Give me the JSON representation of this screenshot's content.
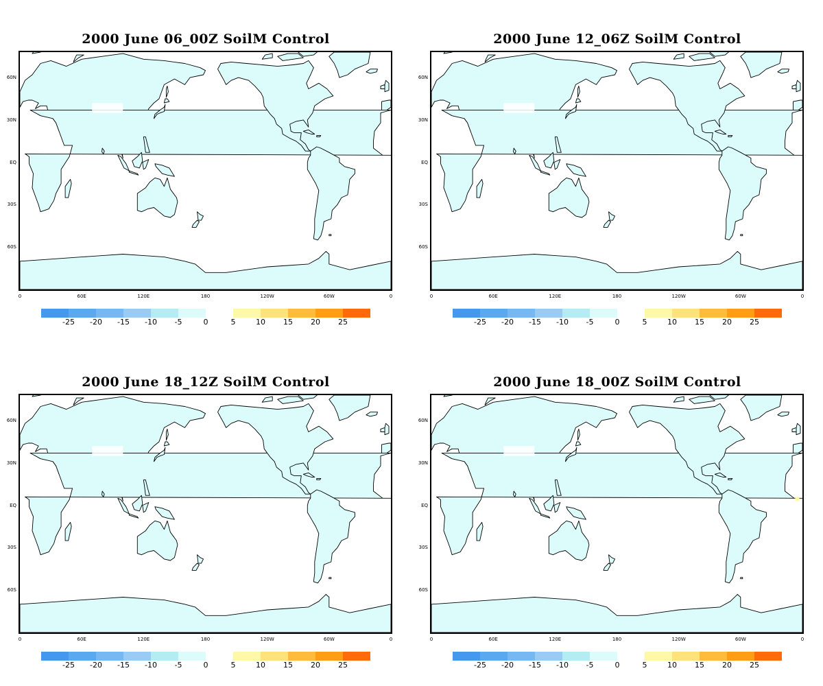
{
  "panels": [
    {
      "title": "2000 June 06_00Z SoilM Control",
      "yellow_patch": false
    },
    {
      "title": "2000 June 12_06Z SoilM Control",
      "yellow_patch": false
    },
    {
      "title": "2000 June 18_12Z SoilM Control",
      "yellow_patch": false
    },
    {
      "title": "2000 June 18_00Z SoilM Control",
      "yellow_patch": true
    }
  ],
  "lat_labels": [
    "60N",
    "30N",
    "EQ",
    "30S",
    "60S"
  ],
  "lon_labels": [
    "0",
    "60E",
    "120E",
    "180",
    "120W",
    "60W",
    "0"
  ],
  "colorbar": {
    "negative": {
      "labels": [
        "-25",
        "-20",
        "-15",
        "-10",
        "-5",
        "0"
      ],
      "colors": [
        "#4499ee",
        "#5aa8f0",
        "#78b8f2",
        "#99cbf4",
        "#b3ecf2",
        "#dcfcfc"
      ]
    },
    "positive": {
      "labels": [
        "5",
        "10",
        "15",
        "20",
        "25"
      ],
      "colors": [
        "#fff8a8",
        "#ffe27a",
        "#ffbb3c",
        "#ff9e14",
        "#ff6a0a"
      ]
    }
  },
  "colors": {
    "land_fill": "#dcfcfc",
    "coastline": "#000000",
    "yellow_patch": "#fff8a8"
  }
}
